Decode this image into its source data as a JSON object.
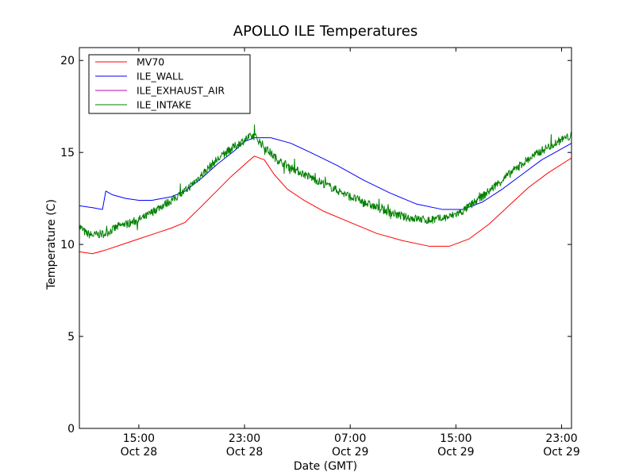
{
  "chart_data": {
    "type": "line",
    "title": "APOLLO ILE Temperatures",
    "xlabel": "Date (GMT)",
    "ylabel": "Temperature (C)",
    "ylim": [
      0,
      20.7
    ],
    "xlim": [
      "2012-10-28T10:30",
      "2012-10-29T23:45"
    ],
    "grid": false,
    "legend_position": "top-left",
    "x_ticks": [
      {
        "x": "2012-10-28T15:00",
        "time": "15:00",
        "date": "Oct 28"
      },
      {
        "x": "2012-10-28T23:00",
        "time": "23:00",
        "date": "Oct 28"
      },
      {
        "x": "2012-10-29T07:00",
        "time": "07:00",
        "date": "Oct 29"
      },
      {
        "x": "2012-10-29T15:00",
        "time": "15:00",
        "date": "Oct 29"
      },
      {
        "x": "2012-10-29T23:00",
        "time": "23:00",
        "date": "Oct 29"
      }
    ],
    "y_ticks": [
      0,
      5,
      10,
      15,
      20
    ],
    "series": [
      {
        "name": "MV70",
        "color": "#ff0000",
        "points": [
          [
            "2012-10-28T10:30",
            9.6
          ],
          [
            "2012-10-28T11:30",
            9.5
          ],
          [
            "2012-10-28T12:30",
            9.7
          ],
          [
            "2012-10-28T13:45",
            10.0
          ],
          [
            "2012-10-28T15:00",
            10.3
          ],
          [
            "2012-10-28T16:15",
            10.6
          ],
          [
            "2012-10-28T17:30",
            10.9
          ],
          [
            "2012-10-28T18:30",
            11.2
          ],
          [
            "2012-10-28T19:30",
            11.9
          ],
          [
            "2012-10-28T20:45",
            12.8
          ],
          [
            "2012-10-28T22:00",
            13.7
          ],
          [
            "2012-10-28T23:15",
            14.5
          ],
          [
            "2012-10-28T23:45",
            14.8
          ],
          [
            "2012-10-29T00:30",
            14.6
          ],
          [
            "2012-10-29T01:15",
            13.8
          ],
          [
            "2012-10-29T02:15",
            13.0
          ],
          [
            "2012-10-29T03:30",
            12.4
          ],
          [
            "2012-10-29T05:00",
            11.8
          ],
          [
            "2012-10-29T07:00",
            11.2
          ],
          [
            "2012-10-29T09:00",
            10.6
          ],
          [
            "2012-10-29T11:00",
            10.2
          ],
          [
            "2012-10-29T13:00",
            9.9
          ],
          [
            "2012-10-29T14:30",
            9.9
          ],
          [
            "2012-10-29T16:00",
            10.3
          ],
          [
            "2012-10-29T17:30",
            11.1
          ],
          [
            "2012-10-29T19:00",
            12.1
          ],
          [
            "2012-10-29T20:30",
            13.1
          ],
          [
            "2012-10-29T22:00",
            13.9
          ],
          [
            "2012-10-29T23:45",
            14.7
          ]
        ]
      },
      {
        "name": "ILE_WALL",
        "color": "#0000ff",
        "points": [
          [
            "2012-10-28T10:30",
            12.1
          ],
          [
            "2012-10-28T11:30",
            12.0
          ],
          [
            "2012-10-28T12:15",
            11.9
          ],
          [
            "2012-10-28T12:30",
            12.9
          ],
          [
            "2012-10-28T13:00",
            12.7
          ],
          [
            "2012-10-28T14:00",
            12.5
          ],
          [
            "2012-10-28T15:00",
            12.4
          ],
          [
            "2012-10-28T16:00",
            12.4
          ],
          [
            "2012-10-28T17:30",
            12.6
          ],
          [
            "2012-10-28T18:30",
            12.9
          ],
          [
            "2012-10-28T19:45",
            13.6
          ],
          [
            "2012-10-28T21:00",
            14.4
          ],
          [
            "2012-10-28T22:15",
            15.1
          ],
          [
            "2012-10-28T23:00",
            15.6
          ],
          [
            "2012-10-28T23:45",
            15.8
          ],
          [
            "2012-10-29T01:00",
            15.8
          ],
          [
            "2012-10-29T02:30",
            15.5
          ],
          [
            "2012-10-29T04:00",
            15.0
          ],
          [
            "2012-10-29T06:00",
            14.3
          ],
          [
            "2012-10-29T08:00",
            13.5
          ],
          [
            "2012-10-29T10:00",
            12.8
          ],
          [
            "2012-10-29T12:00",
            12.2
          ],
          [
            "2012-10-29T14:00",
            11.9
          ],
          [
            "2012-10-29T15:30",
            11.9
          ],
          [
            "2012-10-29T17:00",
            12.3
          ],
          [
            "2012-10-29T18:30",
            13.0
          ],
          [
            "2012-10-29T20:00",
            13.8
          ],
          [
            "2012-10-29T21:30",
            14.6
          ],
          [
            "2012-10-29T23:00",
            15.2
          ],
          [
            "2012-10-29T23:45",
            15.5
          ]
        ]
      },
      {
        "name": "ILE_EXHAUST_AIR",
        "color": "#bf00bf",
        "points": []
      },
      {
        "name": "ILE_INTAKE",
        "color": "#008000",
        "noisy": true,
        "points": [
          [
            "2012-10-28T10:30",
            11.0
          ],
          [
            "2012-10-28T11:00",
            10.6
          ],
          [
            "2012-10-28T11:30",
            10.5
          ],
          [
            "2012-10-28T12:30",
            10.6
          ],
          [
            "2012-10-28T13:30",
            11.0
          ],
          [
            "2012-10-28T14:30",
            11.2
          ],
          [
            "2012-10-28T15:30",
            11.5
          ],
          [
            "2012-10-28T16:30",
            12.0
          ],
          [
            "2012-10-28T17:30",
            12.4
          ],
          [
            "2012-10-28T18:30",
            12.9
          ],
          [
            "2012-10-28T19:30",
            13.6
          ],
          [
            "2012-10-28T20:45",
            14.5
          ],
          [
            "2012-10-28T22:00",
            15.2
          ],
          [
            "2012-10-28T23:15",
            15.8
          ],
          [
            "2012-10-28T23:45",
            15.9
          ],
          [
            "2012-10-29T00:30",
            15.3
          ],
          [
            "2012-10-29T01:30",
            14.6
          ],
          [
            "2012-10-29T03:00",
            14.0
          ],
          [
            "2012-10-29T05:00",
            13.3
          ],
          [
            "2012-10-29T07:00",
            12.6
          ],
          [
            "2012-10-29T09:00",
            12.0
          ],
          [
            "2012-10-29T11:00",
            11.5
          ],
          [
            "2012-10-29T13:00",
            11.3
          ],
          [
            "2012-10-29T14:30",
            11.5
          ],
          [
            "2012-10-29T15:30",
            11.8
          ],
          [
            "2012-10-29T17:00",
            12.6
          ],
          [
            "2012-10-29T18:30",
            13.5
          ],
          [
            "2012-10-29T20:00",
            14.4
          ],
          [
            "2012-10-29T21:30",
            15.1
          ],
          [
            "2012-10-29T23:00",
            15.7
          ],
          [
            "2012-10-29T23:45",
            15.9
          ]
        ]
      }
    ]
  }
}
